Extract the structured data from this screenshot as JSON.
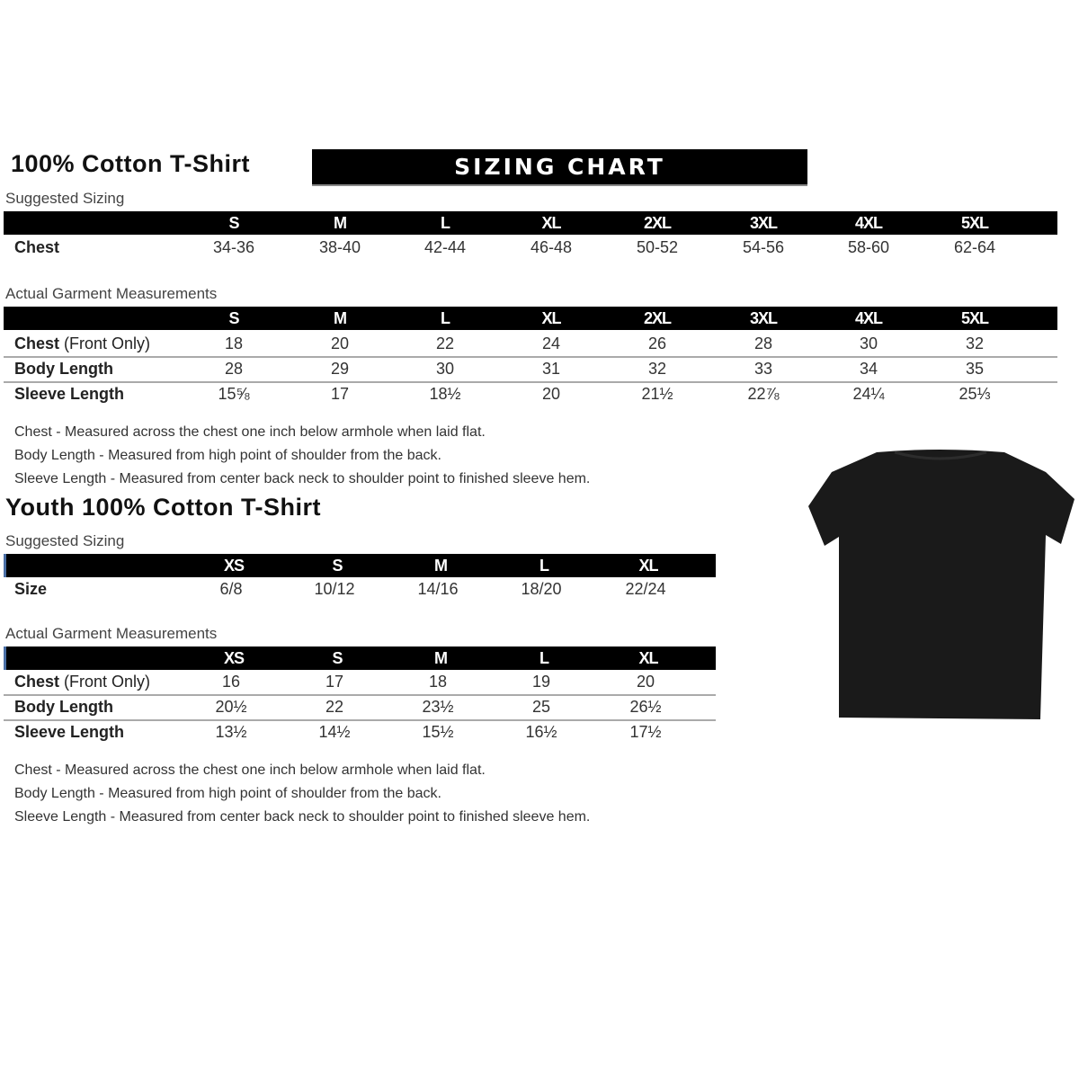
{
  "adult": {
    "title": "100% Cotton T-Shirt",
    "banner": "SIZING CHART",
    "suggested_label": "Suggested Sizing",
    "sizes": [
      "S",
      "M",
      "L",
      "XL",
      "2XL",
      "3XL",
      "4XL",
      "5XL"
    ],
    "suggested_rows": [
      {
        "label": "Chest",
        "label_light": "",
        "values": [
          "34-36",
          "38-40",
          "42-44",
          "46-48",
          "50-52",
          "54-56",
          "58-60",
          "62-64"
        ]
      }
    ],
    "actual_label": "Actual Garment Measurements",
    "actual_rows": [
      {
        "label": "Chest",
        "label_light": " (Front Only)",
        "values": [
          "18",
          "20",
          "22",
          "24",
          "26",
          "28",
          "30",
          "32"
        ]
      },
      {
        "label": "Body Length",
        "label_light": "",
        "values": [
          "28",
          "29",
          "30",
          "31",
          "32",
          "33",
          "34",
          "35"
        ]
      },
      {
        "label": "Sleeve Length",
        "label_light": "",
        "values": [
          "15⅝",
          "17",
          "18½",
          "20",
          "21½",
          "22⅞",
          "24¼",
          "25⅓"
        ]
      }
    ],
    "notes": [
      "Chest - Measured across the chest one inch below armhole when laid flat.",
      "Body Length - Measured from high point of shoulder from the back.",
      "Sleeve Length - Measured from center back neck to shoulder point to finished sleeve hem."
    ]
  },
  "youth": {
    "title": "Youth 100% Cotton T-Shirt",
    "suggested_label": "Suggested Sizing",
    "sizes": [
      "XS",
      "S",
      "M",
      "L",
      "XL"
    ],
    "suggested_rows": [
      {
        "label": "Size",
        "label_light": "",
        "values": [
          "6/8",
          "10/12",
          "14/16",
          "18/20",
          "22/24"
        ]
      }
    ],
    "actual_label": "Actual Garment Measurements",
    "actual_rows": [
      {
        "label": "Chest",
        "label_light": " (Front Only)",
        "values": [
          "16",
          "17",
          "18",
          "19",
          "20"
        ]
      },
      {
        "label": "Body Length",
        "label_light": "",
        "values": [
          "20½",
          "22",
          "23½",
          "25",
          "26½"
        ]
      },
      {
        "label": "Sleeve Length",
        "label_light": "",
        "values": [
          "13½",
          "14½",
          "15½",
          "16½",
          "17½"
        ]
      }
    ],
    "notes": [
      "Chest - Measured across the chest one inch below armhole when laid flat.",
      "Body Length - Measured from high point of shoulder from the back.",
      "Sleeve Length - Measured from center back neck to shoulder point to finished sleeve hem."
    ]
  },
  "image": {
    "icon": "black-tshirt",
    "color": "#1a1a1a"
  }
}
